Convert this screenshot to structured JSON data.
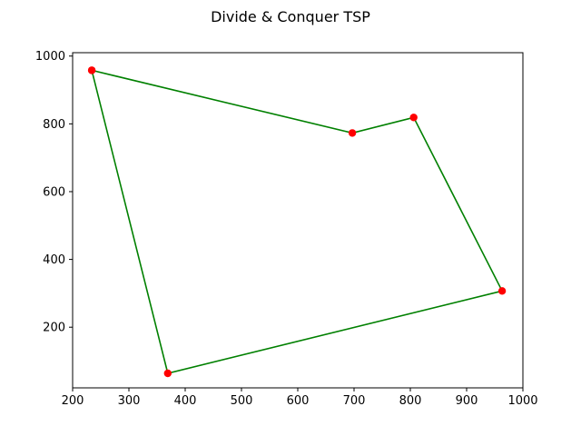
{
  "chart_data": {
    "type": "line",
    "title": "Divide & Conquer TSP",
    "xlabel": "",
    "ylabel": "",
    "xlim": [
      200,
      1000
    ],
    "ylim": [
      21,
      1010
    ],
    "xticks": [
      200,
      300,
      400,
      500,
      600,
      700,
      800,
      900,
      1000
    ],
    "yticks": [
      200,
      400,
      600,
      800,
      1000
    ],
    "grid": false,
    "line_color": "#008000",
    "point_color": "#ff0000",
    "series": [
      {
        "x": [
          234,
          697,
          806,
          963,
          369,
          234
        ],
        "y": [
          958,
          773,
          819,
          307,
          64,
          958
        ]
      }
    ]
  }
}
